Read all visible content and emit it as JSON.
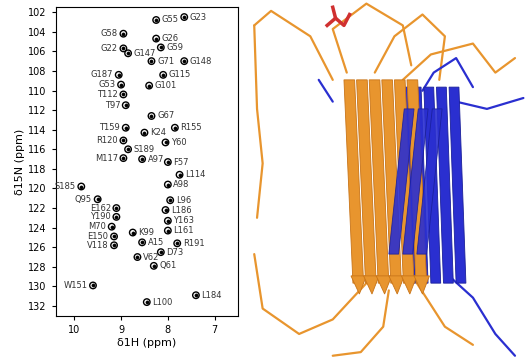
{
  "chart_data": {
    "type": "scatter",
    "x_label": "δ1H (ppm)",
    "y_label": "δ15N (ppm)",
    "xlim": [
      10.4,
      6.5
    ],
    "ylim": [
      133,
      101.5
    ],
    "xticks": [
      10,
      9,
      8,
      7
    ],
    "yticks": [
      102,
      104,
      106,
      108,
      110,
      112,
      114,
      116,
      118,
      120,
      122,
      124,
      126,
      128,
      130,
      132
    ],
    "color": "#000000",
    "marker": "o",
    "labels": [
      "G23",
      "G55",
      "G58",
      "G26",
      "G22",
      "G59",
      "G147",
      "G71",
      "G148",
      "G187",
      "G115",
      "G53",
      "G101",
      "T112",
      "T97",
      "G67",
      "T159",
      "R155",
      "K24",
      "R120",
      "Y60",
      "S189",
      "A97",
      "M117",
      "F57",
      "L114",
      "S185",
      "A98",
      "Q95",
      "L96",
      "E162",
      "L186",
      "Y190",
      "Y163",
      "M70",
      "L161",
      "K99",
      "E150",
      "A15",
      "V118",
      "R191",
      "D73",
      "V62",
      "Q61",
      "W151",
      "L184",
      "L100"
    ],
    "x": [
      7.65,
      8.25,
      8.95,
      8.25,
      8.95,
      8.15,
      8.85,
      8.35,
      7.65,
      9.05,
      8.1,
      9.0,
      8.4,
      8.95,
      8.9,
      8.35,
      8.9,
      7.85,
      8.5,
      8.95,
      8.05,
      8.85,
      8.55,
      8.95,
      8.0,
      7.75,
      9.85,
      8.0,
      9.5,
      7.95,
      9.1,
      8.05,
      9.1,
      8.0,
      9.2,
      8.0,
      8.75,
      9.15,
      8.55,
      9.15,
      7.8,
      8.15,
      8.65,
      8.3,
      9.6,
      7.4,
      8.45
    ],
    "y": [
      102.5,
      102.8,
      104.2,
      104.7,
      105.7,
      105.6,
      106.2,
      107.0,
      107.0,
      108.4,
      108.4,
      109.4,
      109.5,
      110.4,
      111.5,
      112.6,
      113.8,
      113.8,
      114.3,
      115.1,
      115.3,
      116.0,
      117.0,
      116.9,
      117.3,
      118.6,
      119.8,
      119.6,
      121.1,
      121.2,
      122.0,
      122.2,
      122.9,
      123.3,
      123.9,
      124.3,
      124.5,
      124.9,
      125.5,
      125.8,
      125.6,
      126.5,
      127.0,
      127.9,
      129.9,
      130.9,
      131.6
    ]
  }
}
